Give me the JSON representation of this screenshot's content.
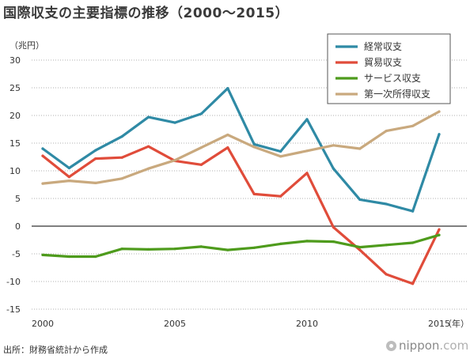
{
  "title": "国際収支の主要指標の推移（2000〜2015）",
  "source": "出所：財務省統計から作成",
  "logo": {
    "name": "nippon",
    "suffix": ".com"
  },
  "chart_data": {
    "type": "line",
    "ylabel": "（兆円）",
    "xunit": "（年）",
    "ylim": [
      -15,
      30
    ],
    "yticks": [
      30,
      25,
      20,
      15,
      10,
      5,
      0,
      -5,
      -10,
      -15
    ],
    "xlim": [
      2000,
      2015
    ],
    "xticks": [
      2000,
      2005,
      2010,
      2015
    ],
    "xtick_labels": [
      "2000",
      "2005",
      "2010",
      "2015"
    ],
    "grid": true,
    "legend_position": "top-right",
    "x": [
      2000,
      2001,
      2002,
      2003,
      2004,
      2005,
      2006,
      2007,
      2008,
      2009,
      2010,
      2011,
      2012,
      2013,
      2014,
      2015
    ],
    "series": [
      {
        "name": "経常収支",
        "color": "#2f8aa5",
        "values": [
          14.0,
          10.5,
          13.7,
          16.2,
          19.7,
          18.7,
          20.3,
          24.9,
          14.8,
          13.5,
          19.3,
          10.4,
          4.8,
          4.0,
          2.7,
          16.6
        ]
      },
      {
        "name": "貿易収支",
        "color": "#e04c3a",
        "values": [
          12.7,
          8.9,
          12.2,
          12.4,
          14.4,
          11.8,
          11.1,
          14.2,
          5.8,
          5.4,
          9.6,
          -0.2,
          -4.3,
          -8.7,
          -10.4,
          -0.6
        ]
      },
      {
        "name": "サービス収支",
        "color": "#4e9b1c",
        "values": [
          -5.2,
          -5.5,
          -5.5,
          -4.1,
          -4.2,
          -4.1,
          -3.7,
          -4.3,
          -3.9,
          -3.2,
          -2.7,
          -2.8,
          -3.8,
          -3.4,
          -3.0,
          -1.6
        ]
      },
      {
        "name": "第一次所得収支",
        "color": "#c9a97e",
        "values": [
          7.7,
          8.2,
          7.8,
          8.6,
          10.4,
          11.9,
          14.2,
          16.5,
          14.3,
          12.6,
          13.6,
          14.6,
          14.0,
          17.2,
          18.1,
          20.7
        ]
      }
    ]
  }
}
